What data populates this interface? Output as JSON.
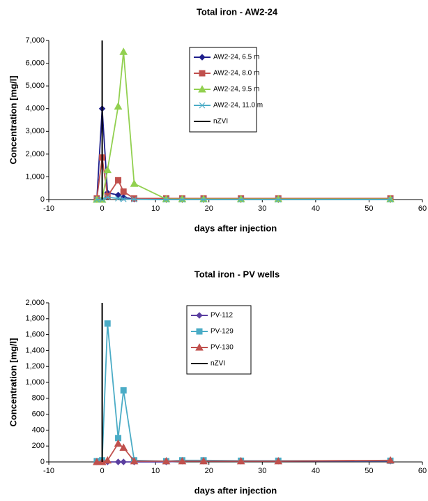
{
  "chart_data": [
    {
      "type": "line",
      "title": "Total iron - AW2-24",
      "x_label": "days after injection",
      "y_label": "Concentration [mg/l]",
      "xlim": [
        -10,
        60
      ],
      "xticks": [
        -10,
        0,
        10,
        20,
        30,
        40,
        50,
        60
      ],
      "ylim": [
        0,
        7000
      ],
      "yticks": [
        0,
        {
          "value": 1000,
          "label": "1,000"
        },
        {
          "value": 2000,
          "label": "2,000"
        },
        {
          "value": 3000,
          "label": "3,000"
        },
        {
          "value": 4000,
          "label": "4,000"
        },
        {
          "value": 5000,
          "label": "5,000"
        },
        {
          "value": 6000,
          "label": "6,000"
        },
        {
          "value": 7000,
          "label": "7,000"
        }
      ],
      "series": [
        {
          "name": "AW2-24, 6.5 m",
          "color": "#1f1f8c",
          "marker": "diamond",
          "x": [
            -1,
            0,
            1,
            3,
            4,
            6,
            12,
            15,
            19,
            26,
            33,
            54
          ],
          "values": [
            0,
            4000,
            300,
            200,
            100,
            20,
            0,
            0,
            0,
            0,
            0,
            0
          ]
        },
        {
          "name": "AW2-24, 8.0 m",
          "color": "#c0504d",
          "marker": "square",
          "x": [
            -1,
            0,
            1,
            3,
            4,
            6,
            12,
            15,
            19,
            26,
            33,
            54
          ],
          "values": [
            50,
            1850,
            150,
            850,
            350,
            50,
            50,
            50,
            50,
            50,
            50,
            50
          ]
        },
        {
          "name": "AW2-24, 9.5 m",
          "color": "#92d050",
          "marker": "triangle",
          "x": [
            -1,
            0,
            1,
            3,
            4,
            6,
            12,
            15,
            19,
            26,
            33,
            54
          ],
          "values": [
            0,
            0,
            1300,
            4100,
            6500,
            700,
            20,
            20,
            20,
            20,
            20,
            20
          ]
        },
        {
          "name": "AW2-24, 11.0 m",
          "color": "#4bacc6",
          "marker": "x",
          "x": [
            -1,
            0,
            1,
            3,
            4,
            6,
            12,
            15,
            19,
            26,
            33,
            54
          ],
          "values": [
            0,
            0,
            100,
            50,
            20,
            10,
            0,
            0,
            0,
            0,
            0,
            0
          ]
        },
        {
          "name": "nZVI",
          "color": "#000000",
          "marker": "none",
          "x": [
            0,
            0
          ],
          "values": [
            0,
            7000
          ]
        }
      ]
    },
    {
      "type": "line",
      "title": "Total iron - PV wells",
      "x_label": "days after injection",
      "y_label": "Concentration [mg/l]",
      "xlim": [
        -10,
        60
      ],
      "xticks": [
        -10,
        0,
        10,
        20,
        30,
        40,
        50,
        60
      ],
      "ylim": [
        0,
        2000
      ],
      "yticks": [
        0,
        200,
        400,
        600,
        800,
        {
          "value": 1000,
          "label": "1,000"
        },
        {
          "value": 1200,
          "label": "1,200"
        },
        {
          "value": 1400,
          "label": "1,400"
        },
        {
          "value": 1600,
          "label": "1,600"
        },
        {
          "value": 1800,
          "label": "1,800"
        },
        {
          "value": 2000,
          "label": "2,000"
        }
      ],
      "series": [
        {
          "name": "PV-112",
          "color": "#5b3fa0",
          "marker": "diamond",
          "x": [
            -1,
            0,
            1,
            3,
            4,
            6,
            12,
            15,
            19,
            26,
            33,
            54
          ],
          "values": [
            0,
            0,
            0,
            0,
            0,
            0,
            0,
            10,
            10,
            10,
            10,
            10
          ]
        },
        {
          "name": "PV-129",
          "color": "#4bacc6",
          "marker": "square",
          "x": [
            -1,
            0,
            1,
            3,
            4,
            6,
            12,
            15,
            19,
            26,
            33,
            54
          ],
          "values": [
            10,
            20,
            1740,
            300,
            900,
            20,
            10,
            20,
            20,
            15,
            15,
            15
          ]
        },
        {
          "name": "PV-130",
          "color": "#c0504d",
          "marker": "triangle",
          "x": [
            -1,
            0,
            1,
            3,
            4,
            6,
            12,
            15,
            19,
            26,
            33,
            54
          ],
          "values": [
            0,
            0,
            20,
            230,
            180,
            10,
            10,
            10,
            10,
            10,
            10,
            20
          ]
        },
        {
          "name": "nZVI",
          "color": "#000000",
          "marker": "none",
          "x": [
            0,
            0
          ],
          "values": [
            0,
            2000
          ]
        }
      ]
    }
  ]
}
